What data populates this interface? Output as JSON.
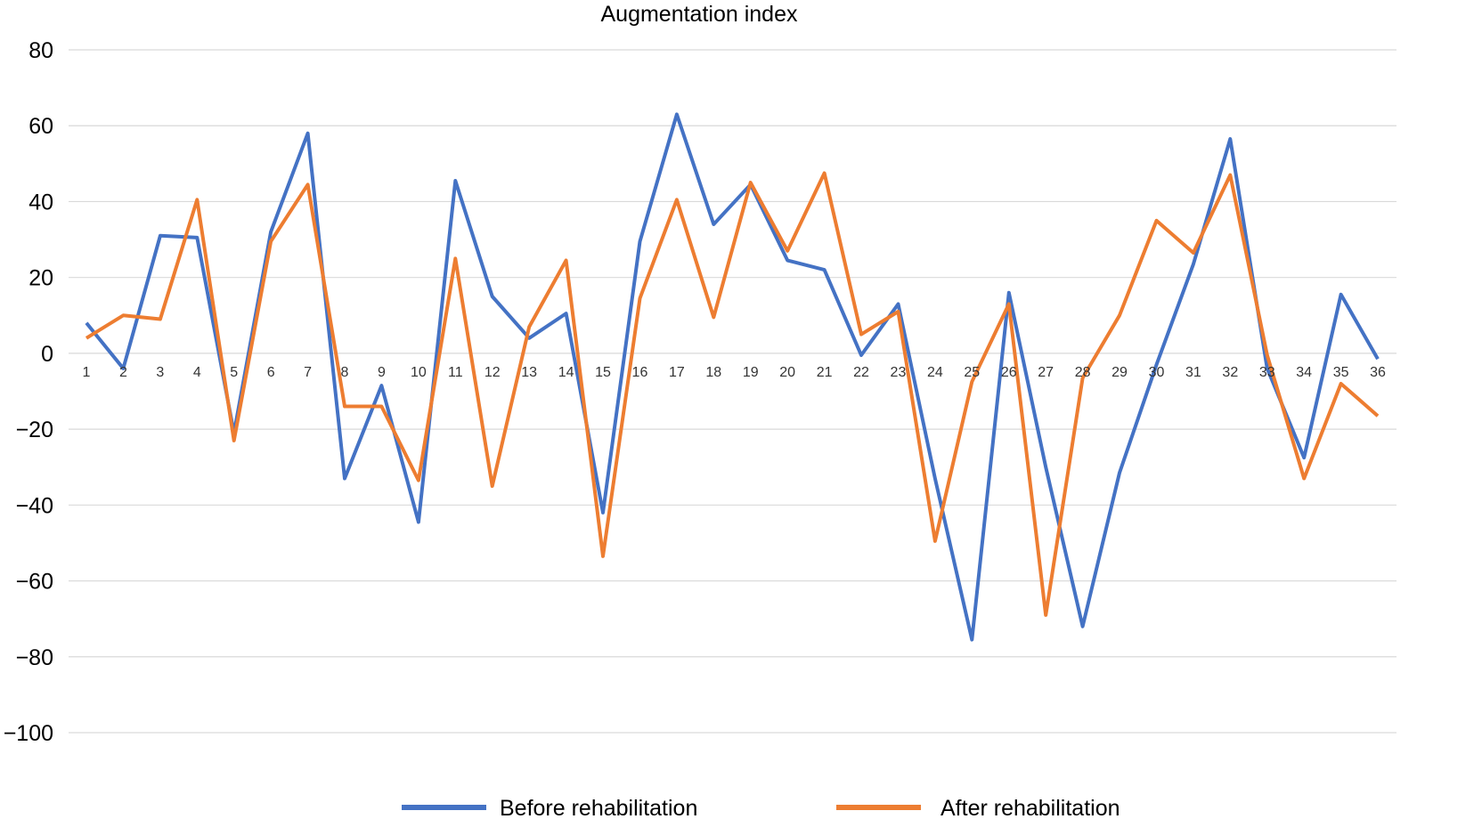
{
  "chart_data": {
    "type": "line",
    "title": "Augmentation index",
    "xlabel": "",
    "ylabel": "",
    "ylim": [
      -100,
      80
    ],
    "yticks": [
      80,
      60,
      40,
      20,
      0,
      -20,
      -40,
      -60,
      -80,
      -100
    ],
    "ytick_labels": [
      "80",
      "60",
      "40",
      "20",
      "0",
      "−20",
      "−40",
      "−60",
      "−80",
      "−100"
    ],
    "grid": true,
    "legend_position": "bottom",
    "categories": [
      "1",
      "2",
      "3",
      "4",
      "5",
      "6",
      "7",
      "8",
      "9",
      "10",
      "11",
      "12",
      "13",
      "14",
      "15",
      "16",
      "17",
      "18",
      "19",
      "20",
      "21",
      "22",
      "23",
      "24",
      "25",
      "26",
      "27",
      "28",
      "29",
      "30",
      "31",
      "32",
      "33",
      "34",
      "35",
      "36"
    ],
    "series": [
      {
        "name": "Before rehabilitation",
        "color": "#4472c4",
        "values": [
          8,
          -4,
          31,
          30.5,
          -21,
          32,
          58,
          -33,
          -8.5,
          -44.5,
          45.5,
          15,
          4,
          10.5,
          -42,
          29.5,
          63,
          34,
          44.5,
          24.5,
          22,
          -0.5,
          13,
          -33,
          -75.5,
          16,
          -30,
          -72,
          -31.5,
          -3,
          23.5,
          56.5,
          -4,
          -27.5,
          15.5,
          -1.5
        ]
      },
      {
        "name": "After rehabilitation",
        "color": "#ed7d31",
        "values": [
          4,
          10,
          9,
          40.5,
          -23,
          29.5,
          44.5,
          -14,
          -14,
          -33.5,
          25,
          -35,
          7,
          24.5,
          -53.5,
          14.5,
          40.5,
          9.5,
          45,
          27,
          47.5,
          5,
          11,
          -49.5,
          -7.5,
          13,
          -69,
          -6.5,
          10,
          35,
          26.5,
          47,
          -0.5,
          -33,
          -8,
          -16.5
        ]
      }
    ]
  }
}
